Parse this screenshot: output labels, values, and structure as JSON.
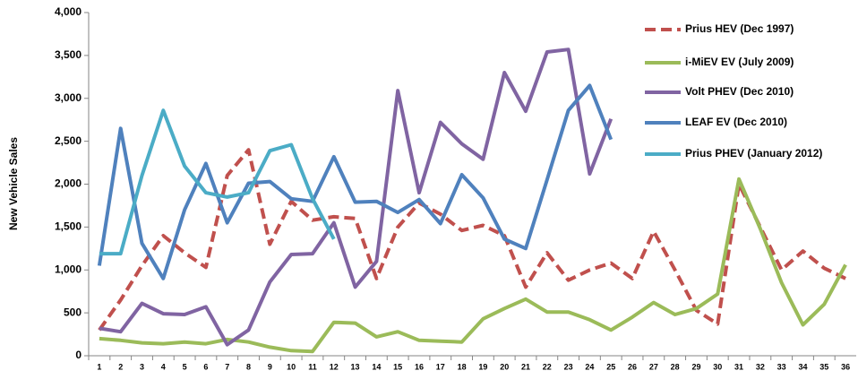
{
  "chart_data": {
    "type": "line",
    "y_label": "New  Vehicle Sales",
    "categories": [
      "1",
      "2",
      "3",
      "4",
      "5",
      "6",
      "7",
      "8",
      "9",
      "10",
      "11",
      "12",
      "13",
      "14",
      "15",
      "16",
      "17",
      "18",
      "19",
      "20",
      "21",
      "22",
      "23",
      "24",
      "25",
      "26",
      "27",
      "28",
      "29",
      "30",
      "31",
      "32",
      "33",
      "34",
      "35",
      "36"
    ],
    "ylim": [
      0,
      4000
    ],
    "yticks": [
      0,
      500,
      {
        "value": 1000,
        "label": "1,000"
      },
      {
        "value": 1500,
        "label": "1,500"
      },
      {
        "value": 2000,
        "label": "2,000"
      },
      {
        "value": 2500,
        "label": "2,500"
      },
      {
        "value": 3000,
        "label": "3,000"
      },
      {
        "value": 3500,
        "label": "3,500"
      },
      {
        "value": 4000,
        "label": "4,000"
      }
    ],
    "grid": false,
    "legend": "right",
    "series": [
      {
        "name": "Prius HEV (Dec 1997)",
        "color": "#c0504d",
        "dashed": true,
        "values": [
          300,
          650,
          1050,
          1400,
          1200,
          1030,
          2100,
          2400,
          1300,
          1800,
          1580,
          1620,
          1600,
          900,
          1500,
          1780,
          1650,
          1460,
          1520,
          1400,
          800,
          1200,
          880,
          1000,
          1080,
          900,
          1450,
          1000,
          530,
          370,
          2000,
          1500,
          1000,
          1220,
          1020,
          900
        ]
      },
      {
        "name": "i-MiEV EV (July 2009)",
        "color": "#9bbb59",
        "values": [
          200,
          180,
          150,
          140,
          160,
          140,
          190,
          160,
          100,
          60,
          50,
          390,
          380,
          220,
          280,
          180,
          170,
          160,
          430,
          550,
          660,
          510,
          510,
          420,
          300,
          450,
          620,
          480,
          550,
          720,
          2060,
          1480,
          850,
          360,
          600,
          1060
        ]
      },
      {
        "name": "Volt PHEV (Dec 2010)",
        "color": "#8064a2",
        "values": [
          320,
          280,
          610,
          490,
          480,
          570,
          130,
          300,
          860,
          1180,
          1190,
          1550,
          800,
          1100,
          3090,
          1900,
          2720,
          2470,
          2290,
          3300,
          2850,
          3540,
          3570,
          2120,
          2760,
          null,
          null,
          null,
          null,
          null,
          null,
          null,
          null,
          null,
          null,
          null
        ]
      },
      {
        "name": "LEAF EV (Dec 2010)",
        "color": "#4f81bd",
        "values": [
          1050,
          2650,
          1310,
          900,
          1700,
          2240,
          1550,
          2010,
          2030,
          1830,
          1800,
          2320,
          1790,
          1800,
          1670,
          1820,
          1540,
          2110,
          1840,
          1360,
          1250,
          2050,
          2860,
          3150,
          2520,
          null,
          null,
          null,
          null,
          null,
          null,
          null,
          null,
          null,
          null,
          null
        ]
      },
      {
        "name": "Prius PHEV (January 2012)",
        "color": "#4bacc6",
        "values": [
          1190,
          1190,
          2100,
          2860,
          2210,
          1900,
          1850,
          1900,
          2390,
          2460,
          1830,
          1360,
          null,
          null,
          null,
          null,
          null,
          null,
          null,
          null,
          null,
          null,
          null,
          null,
          null,
          null,
          null,
          null,
          null,
          null,
          null,
          null,
          null,
          null,
          null,
          null
        ]
      }
    ]
  }
}
